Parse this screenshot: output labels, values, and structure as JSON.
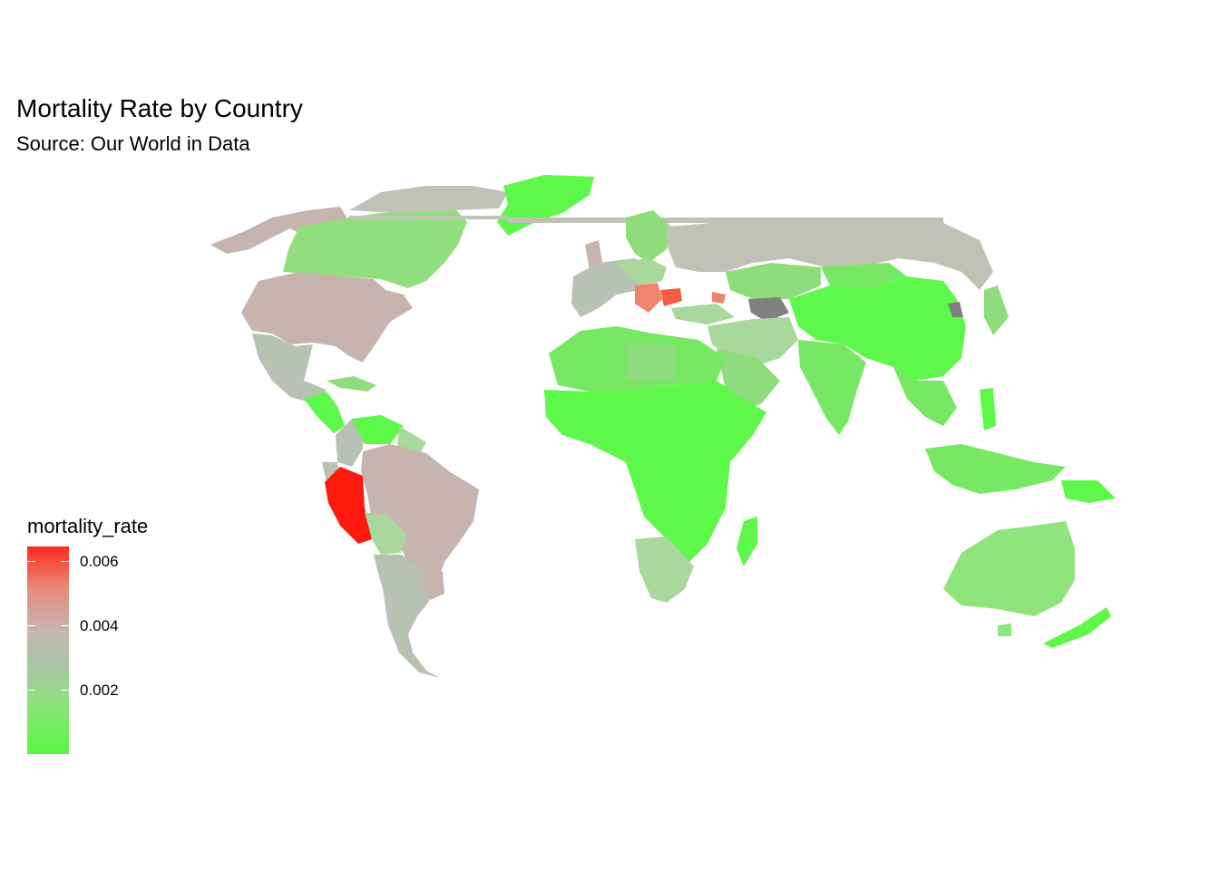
{
  "chart": {
    "title": "Mortality Rate by Country",
    "subtitle": "Source: Our World in Data"
  },
  "legend": {
    "title": "mortality_rate",
    "ticks": [
      "0.006",
      "0.004",
      "0.002"
    ],
    "tick_values": [
      0.006,
      0.004,
      0.002
    ],
    "range": [
      0.0,
      0.0065
    ],
    "colors": {
      "low": "#58f842",
      "mid": "#c3b8b4",
      "high": "#ff1a10"
    }
  },
  "chart_data": {
    "type": "choropleth",
    "variable": "mortality_rate",
    "palette": {
      "low": "#58f842",
      "mid": "#c3b8b4",
      "high": "#ff1a10",
      "na": "#808080"
    },
    "regions": [
      {
        "name": "Canada",
        "value": 0.0022
      },
      {
        "name": "Alaska",
        "value": 0.0038
      },
      {
        "name": "Greenland",
        "value": 0.0003
      },
      {
        "name": "United States",
        "value": 0.0037
      },
      {
        "name": "Mexico",
        "value": 0.0029
      },
      {
        "name": "Central America",
        "value": 0.0012
      },
      {
        "name": "Colombia",
        "value": 0.0027
      },
      {
        "name": "Venezuela",
        "value": 0.0007
      },
      {
        "name": "Guyana",
        "value": 0.0015
      },
      {
        "name": "Brazil",
        "value": 0.0037
      },
      {
        "name": "Peru",
        "value": 0.0064
      },
      {
        "name": "Bolivia",
        "value": 0.0021
      },
      {
        "name": "Argentina",
        "value": 0.0029
      },
      {
        "name": "Chile",
        "value": 0.003
      },
      {
        "name": "Europe West",
        "value": 0.0028
      },
      {
        "name": "Scandinavia",
        "value": 0.001
      },
      {
        "name": "Balkans",
        "value": 0.005
      },
      {
        "name": "Bulgaria",
        "value": 0.0055
      },
      {
        "name": "Russia",
        "value": 0.003
      },
      {
        "name": "Kazakhstan",
        "value": 0.0018
      },
      {
        "name": "Turkmenistan",
        "value": null
      },
      {
        "name": "North Korea",
        "value": null
      },
      {
        "name": "China",
        "value": 0.0003
      },
      {
        "name": "India",
        "value": 0.0009
      },
      {
        "name": "Southeast Asia",
        "value": 0.0007
      },
      {
        "name": "Indonesia",
        "value": 0.0012
      },
      {
        "name": "Middle East",
        "value": 0.0016
      },
      {
        "name": "Africa",
        "value": 0.0004
      },
      {
        "name": "Southern Africa",
        "value": 0.002
      },
      {
        "name": "Madagascar",
        "value": 0.0002
      },
      {
        "name": "Australia",
        "value": 0.0011
      },
      {
        "name": "New Zealand",
        "value": 0.0004
      },
      {
        "name": "Japan",
        "value": 0.0014
      }
    ]
  }
}
